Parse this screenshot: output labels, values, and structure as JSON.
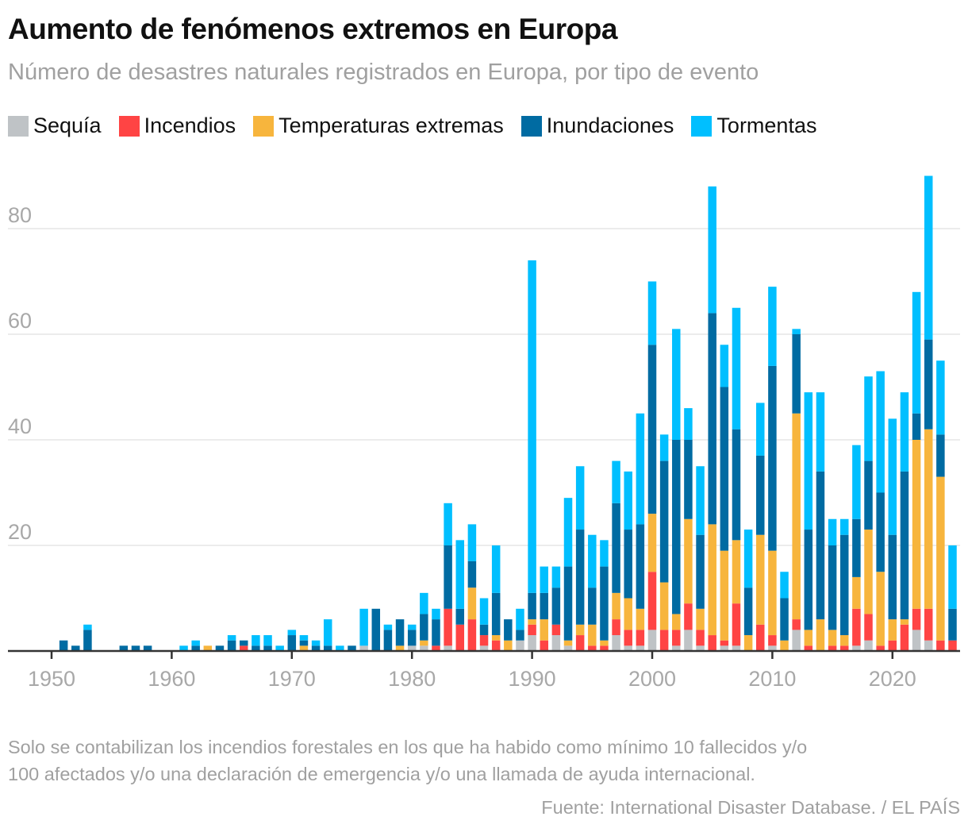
{
  "title": "Aumento de fenómenos extremos en Europa",
  "subtitle": "Número de desastres naturales registrados en Europa, por tipo de evento",
  "notes": [
    "Solo se contabilizan los incendios forestales en los que ha habido como mínimo 10 fallecidos y/o",
    "100 afectados y/o una declaración de emergencia y/o una llamada de ayuda internacional."
  ],
  "source": "Fuente: International Disaster Database. / EL PAÍS",
  "chart_data": {
    "type": "bar",
    "stacked": true,
    "x_start": 1950,
    "x_end": 2025,
    "x_ticks": [
      "1950",
      "1960",
      "1970",
      "1980",
      "1990",
      "2000",
      "2010",
      "2020"
    ],
    "y_ticks": [
      "20",
      "40",
      "60",
      "80"
    ],
    "ylim": [
      0,
      90
    ],
    "grid": true,
    "legend_position": "top-left",
    "series": [
      {
        "name": "Sequía",
        "color": "#bfc3c6",
        "values": [
          0,
          0,
          0,
          0,
          0,
          0,
          0,
          0,
          0,
          0,
          0,
          0,
          0,
          0,
          0,
          0,
          0,
          0,
          0,
          0,
          0,
          0,
          0,
          0,
          0,
          0,
          1,
          0,
          0,
          0,
          1,
          1,
          0,
          1,
          0,
          0,
          1,
          0,
          0,
          2,
          3,
          0,
          3,
          1,
          0,
          0,
          0,
          3,
          1,
          1,
          4,
          0,
          1,
          4,
          1,
          0,
          1,
          1,
          0,
          0,
          1,
          0,
          4,
          0,
          0,
          0,
          0,
          1,
          2,
          0,
          0,
          0,
          4,
          2,
          0,
          0
        ]
      },
      {
        "name": "Incendios",
        "color": "#ff4444",
        "values": [
          0,
          0,
          0,
          0,
          0,
          0,
          0,
          0,
          0,
          0,
          0,
          0,
          0,
          0,
          0,
          0,
          1,
          0,
          0,
          0,
          0,
          0,
          0,
          0,
          0,
          0,
          0,
          0,
          0,
          0,
          0,
          0,
          1,
          7,
          5,
          6,
          2,
          2,
          0,
          0,
          2,
          2,
          2,
          0,
          3,
          1,
          1,
          3,
          3,
          3,
          11,
          4,
          3,
          5,
          3,
          3,
          1,
          8,
          0,
          5,
          2,
          0,
          2,
          1,
          0,
          1,
          1,
          7,
          5,
          1,
          2,
          5,
          4,
          6,
          2,
          2
        ]
      },
      {
        "name": "Temperaturas extremas",
        "color": "#f7b53d",
        "values": [
          0,
          0,
          0,
          0,
          0,
          0,
          0,
          0,
          0,
          0,
          0,
          0,
          0,
          1,
          0,
          0,
          0,
          0,
          0,
          0,
          0,
          1,
          0,
          0,
          0,
          0,
          0,
          0,
          0,
          1,
          0,
          1,
          0,
          0,
          0,
          6,
          0,
          1,
          2,
          0,
          1,
          4,
          0,
          1,
          2,
          4,
          1,
          5,
          6,
          4,
          11,
          9,
          3,
          16,
          4,
          21,
          17,
          12,
          3,
          17,
          16,
          2,
          39,
          3,
          6,
          3,
          2,
          6,
          16,
          14,
          4,
          1,
          32,
          34,
          31,
          0
        ]
      },
      {
        "name": "Inundaciones",
        "color": "#006ba2",
        "values": [
          0,
          2,
          1,
          4,
          0,
          0,
          1,
          1,
          1,
          0,
          0,
          0,
          1,
          0,
          1,
          2,
          1,
          1,
          1,
          0,
          3,
          1,
          1,
          1,
          0,
          1,
          0,
          8,
          4,
          5,
          3,
          5,
          5,
          12,
          3,
          5,
          2,
          8,
          4,
          2,
          5,
          5,
          7,
          14,
          18,
          7,
          14,
          17,
          13,
          16,
          32,
          23,
          33,
          15,
          14,
          40,
          31,
          21,
          9,
          15,
          35,
          8,
          15,
          19,
          28,
          16,
          19,
          11,
          13,
          15,
          16,
          28,
          5,
          17,
          8,
          6
        ]
      },
      {
        "name": "Tormentas",
        "color": "#00bfff",
        "values": [
          0,
          0,
          0,
          1,
          0,
          0,
          0,
          0,
          0,
          0,
          0,
          1,
          1,
          0,
          0,
          1,
          0,
          2,
          2,
          1,
          1,
          1,
          1,
          5,
          1,
          0,
          7,
          0,
          1,
          0,
          1,
          4,
          2,
          8,
          13,
          7,
          5,
          9,
          0,
          4,
          63,
          5,
          4,
          13,
          12,
          10,
          5,
          8,
          11,
          21,
          12,
          5,
          21,
          6,
          13,
          24,
          8,
          23,
          11,
          10,
          15,
          5,
          1,
          26,
          15,
          5,
          3,
          14,
          16,
          23,
          22,
          15,
          23,
          31,
          14,
          12
        ]
      }
    ]
  }
}
